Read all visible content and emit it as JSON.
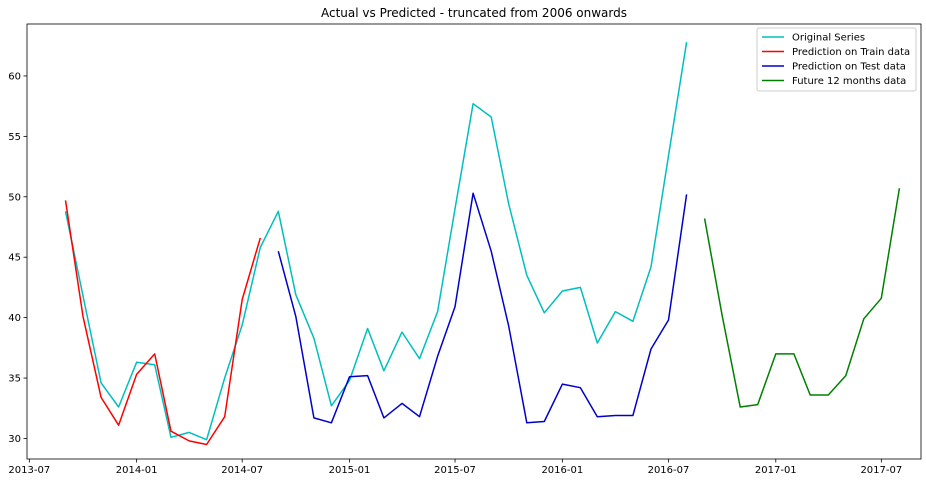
{
  "chart_data": {
    "type": "line",
    "title": "Actual vs Predicted - truncated from 2006 onwards",
    "xlabel": "",
    "ylabel": "",
    "xlim": [
      "2013-06-27",
      "2017-09-07"
    ],
    "ylim": [
      28.3,
      64.3
    ],
    "x_ticks": [
      "2013-07-01",
      "2014-01-01",
      "2014-07-01",
      "2015-01-01",
      "2015-07-01",
      "2016-01-01",
      "2016-07-01",
      "2017-01-01",
      "2017-07-01"
    ],
    "x_tick_labels": [
      "2013-07",
      "2014-01",
      "2014-07",
      "2015-01",
      "2015-07",
      "2016-01",
      "2016-07",
      "2017-01",
      "2017-07"
    ],
    "y_ticks": [
      30,
      35,
      40,
      45,
      50,
      55,
      60
    ],
    "y_tick_labels": [
      "30",
      "35",
      "40",
      "45",
      "50",
      "55",
      "60"
    ],
    "grid": false,
    "legend_position": "top-right",
    "series": [
      {
        "name": "Original Series",
        "color": "#00bfbf",
        "x": [
          "2013-09-01",
          "2013-10-01",
          "2013-11-01",
          "2013-12-01",
          "2014-01-01",
          "2014-02-01",
          "2014-03-01",
          "2014-04-01",
          "2014-05-01",
          "2014-06-01",
          "2014-07-01",
          "2014-08-01",
          "2014-09-01",
          "2014-10-01",
          "2014-11-01",
          "2014-12-01",
          "2015-01-01",
          "2015-02-01",
          "2015-03-01",
          "2015-04-01",
          "2015-05-01",
          "2015-06-01",
          "2015-07-01",
          "2015-08-01",
          "2015-09-01",
          "2015-10-01",
          "2015-11-01",
          "2015-12-01",
          "2016-01-01",
          "2016-02-01",
          "2016-03-01",
          "2016-04-01",
          "2016-05-01",
          "2016-06-01",
          "2016-07-01",
          "2016-08-01"
        ],
        "values": [
          48.8,
          41.8,
          34.6,
          32.6,
          36.3,
          36.1,
          30.1,
          30.5,
          29.9,
          35.0,
          39.4,
          45.8,
          48.8,
          41.9,
          38.3,
          32.7,
          34.8,
          39.1,
          35.6,
          38.8,
          36.6,
          40.5,
          49.0,
          57.7,
          56.6,
          49.4,
          43.5,
          40.4,
          42.2,
          42.5,
          37.9,
          40.5,
          39.7,
          44.2,
          53.4,
          62.8
        ]
      },
      {
        "name": "Prediction on Train data",
        "color": "#ff0000",
        "x": [
          "2013-09-01",
          "2013-10-01",
          "2013-11-01",
          "2013-12-01",
          "2014-01-01",
          "2014-02-01",
          "2014-03-01",
          "2014-04-01",
          "2014-05-01",
          "2014-06-01",
          "2014-07-01",
          "2014-08-01"
        ],
        "values": [
          49.7,
          40.1,
          33.4,
          31.1,
          35.3,
          37.0,
          30.6,
          29.8,
          29.5,
          31.8,
          41.5,
          46.6
        ]
      },
      {
        "name": "Prediction on Test data",
        "color": "#0000cc",
        "x": [
          "2014-09-01",
          "2014-10-01",
          "2014-11-01",
          "2014-12-01",
          "2015-01-01",
          "2015-02-01",
          "2015-03-01",
          "2015-04-01",
          "2015-05-01",
          "2015-06-01",
          "2015-07-01",
          "2015-08-01",
          "2015-09-01",
          "2015-10-01",
          "2015-11-01",
          "2015-12-01",
          "2016-01-01",
          "2016-02-01",
          "2016-03-01",
          "2016-04-01",
          "2016-05-01",
          "2016-06-01",
          "2016-07-01",
          "2016-08-01"
        ],
        "values": [
          45.5,
          40.1,
          31.7,
          31.3,
          35.1,
          35.2,
          31.7,
          32.9,
          31.8,
          36.8,
          40.9,
          50.3,
          45.5,
          39.3,
          31.3,
          31.4,
          34.5,
          34.2,
          31.8,
          31.9,
          31.9,
          37.4,
          39.8,
          50.2
        ]
      },
      {
        "name": "Future 12 months data",
        "color": "#008000",
        "x": [
          "2016-09-01",
          "2016-10-01",
          "2016-11-01",
          "2016-12-01",
          "2017-01-01",
          "2017-02-01",
          "2017-03-01",
          "2017-04-01",
          "2017-05-01",
          "2017-06-01",
          "2017-07-01",
          "2017-08-01"
        ],
        "values": [
          48.2,
          40.2,
          32.6,
          32.8,
          37.0,
          37.0,
          33.6,
          33.6,
          35.2,
          39.9,
          41.6,
          50.7
        ]
      }
    ]
  }
}
